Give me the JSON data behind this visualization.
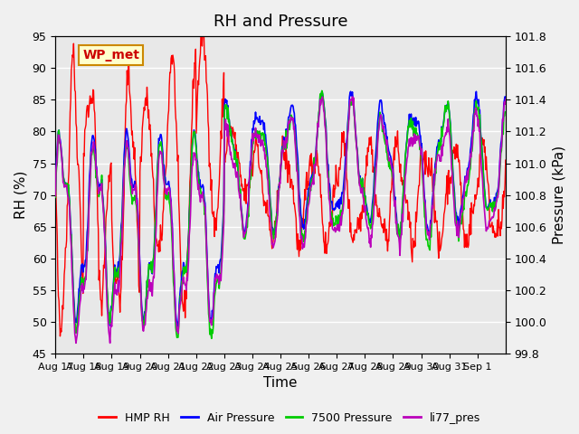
{
  "title": "RH and Pressure",
  "xlabel": "Time",
  "ylabel_left": "RH (%)",
  "ylabel_right": "Pressure (kPa)",
  "ylim_left": [
    45,
    95
  ],
  "ylim_right": [
    99.8,
    101.8
  ],
  "plot_bg_color": "#e8e8e8",
  "fig_bg_color": "#f0f0f0",
  "annotation_text": "WP_met",
  "annotation_bg": "#ffffcc",
  "annotation_border": "#cc8800",
  "annotation_text_color": "#cc0000",
  "grid_color": "#ffffff",
  "colors": {
    "hmp_rh": "#ff0000",
    "air_pressure": "#0000ff",
    "pressure_7500": "#00cc00",
    "li77_pres": "#bb00bb"
  },
  "legend_labels": [
    "HMP RH",
    "Air Pressure",
    "7500 Pressure",
    "li77_pres"
  ],
  "x_tick_labels": [
    "Aug 17",
    "Aug 18",
    "Aug 19",
    "Aug 20",
    "Aug 21",
    "Aug 22",
    "Aug 23",
    "Aug 24",
    "Aug 25",
    "Aug 26",
    "Aug 27",
    "Aug 28",
    "Aug 29",
    "Aug 30",
    "Aug 31",
    "Sep 1"
  ],
  "yticks_left": [
    45,
    50,
    55,
    60,
    65,
    70,
    75,
    80,
    85,
    90,
    95
  ],
  "yticks_right": [
    99.8,
    100.0,
    100.2,
    100.4,
    100.6,
    100.8,
    101.0,
    101.2,
    101.4,
    101.6,
    101.8
  ],
  "title_fontsize": 13,
  "axis_label_fontsize": 11,
  "tick_fontsize": 9
}
